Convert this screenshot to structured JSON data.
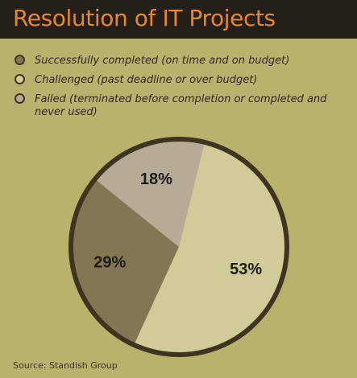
{
  "chart_data": {
    "type": "pie",
    "title": "Resolution of IT Projects",
    "categories": [
      "Successfully completed (on time and on budget)",
      "Challenged (past deadline or over budget)",
      "Failed (terminated before completion or completed and never used)"
    ],
    "values": [
      29,
      53,
      18
    ],
    "labels": [
      "29%",
      "53%",
      "18%"
    ],
    "colors": [
      "#837753",
      "#d0cb98",
      "#b5ab96"
    ],
    "legend_position": "top-left"
  },
  "footer": {
    "source": "Source: Standish Group"
  }
}
